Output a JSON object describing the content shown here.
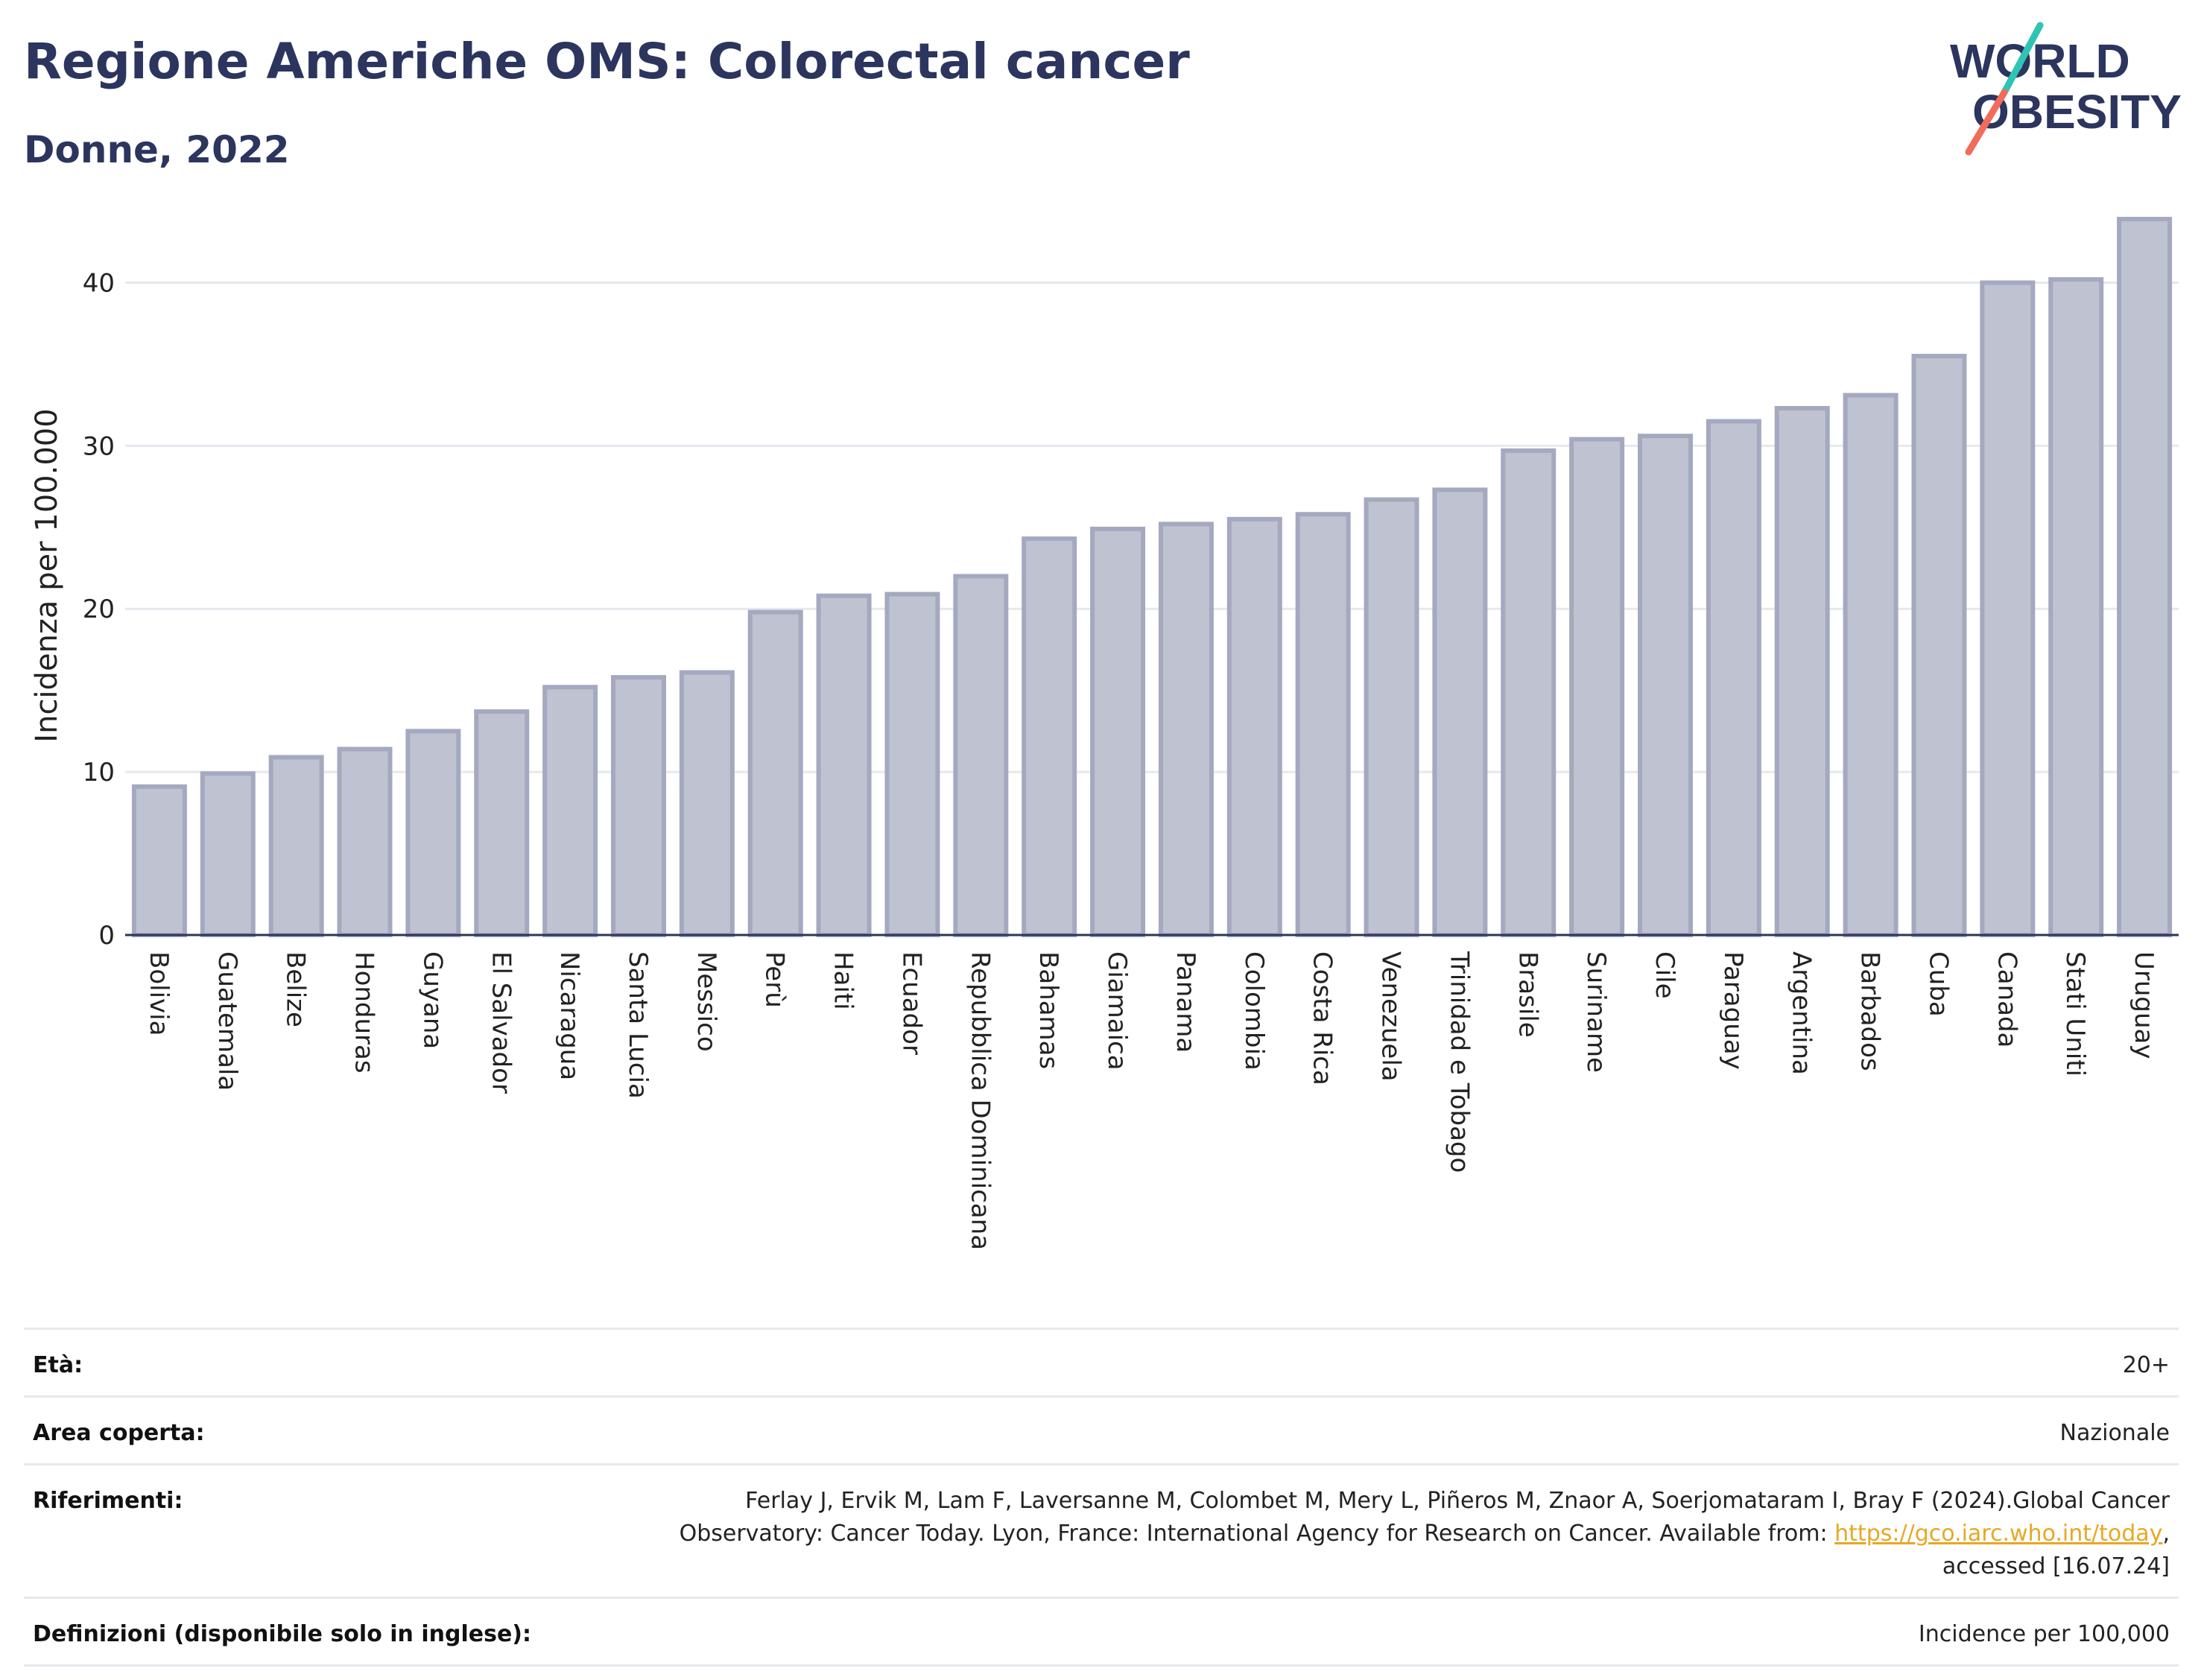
{
  "header": {
    "title": "Regione Americhe OMS: Colorectal cancer",
    "subtitle": "Donne, 2022"
  },
  "logo": {
    "line1": "WORLD",
    "line2": "OBESITY",
    "colors": {
      "text": "#2b355e",
      "slash_top": "#2ec4b6",
      "slash_bottom": "#f26b5b"
    }
  },
  "chart_data": {
    "type": "bar",
    "title": "",
    "xlabel": "",
    "ylabel": "Incidenza per 100.000",
    "ylim": [
      0,
      45
    ],
    "yticks": [
      0,
      10,
      20,
      30,
      40
    ],
    "grid": true,
    "bar_fill": "#bfc2d0",
    "bar_stroke": "#a4a9bf",
    "categories": [
      "Bolivia",
      "Guatemala",
      "Belize",
      "Honduras",
      "Guyana",
      "El Salvador",
      "Nicaragua",
      "Santa Lucia",
      "Messico",
      "Perù",
      "Haiti",
      "Ecuador",
      "Repubblica Dominicana",
      "Bahamas",
      "Giamaica",
      "Panama",
      "Colombia",
      "Costa Rica",
      "Venezuela",
      "Trinidad e Tobago",
      "Brasile",
      "Suriname",
      "Cile",
      "Paraguay",
      "Argentina",
      "Barbados",
      "Cuba",
      "Canada",
      "Stati Uniti",
      "Uruguay"
    ],
    "values": [
      9.1,
      9.9,
      10.9,
      11.4,
      12.5,
      13.7,
      15.2,
      15.8,
      16.1,
      19.8,
      20.8,
      20.9,
      22.0,
      24.3,
      24.9,
      25.2,
      25.5,
      25.8,
      26.7,
      27.3,
      29.7,
      30.4,
      30.6,
      31.5,
      32.3,
      33.1,
      35.5,
      40.0,
      40.2,
      43.9
    ]
  },
  "footer": {
    "rows": [
      {
        "label": "Età:",
        "value": "20+"
      },
      {
        "label": "Area coperta:",
        "value": "Nazionale"
      },
      {
        "label": "Riferimenti:",
        "value_before_link": "Ferlay J, Ervik M, Lam F, Laversanne M, Colombet M, Mery L, Piñeros M, Znaor A, Soerjomataram I, Bray F (2024).Global Cancer Observatory: Cancer Today. Lyon, France: International Agency for Research on Cancer. Available from: ",
        "link": "https://gco.iarc.who.int/today",
        "value_after_link": ", accessed [16.07.24]"
      },
      {
        "label": "Definizioni (disponibile solo in inglese):",
        "value": "Incidence per 100,000"
      }
    ]
  }
}
